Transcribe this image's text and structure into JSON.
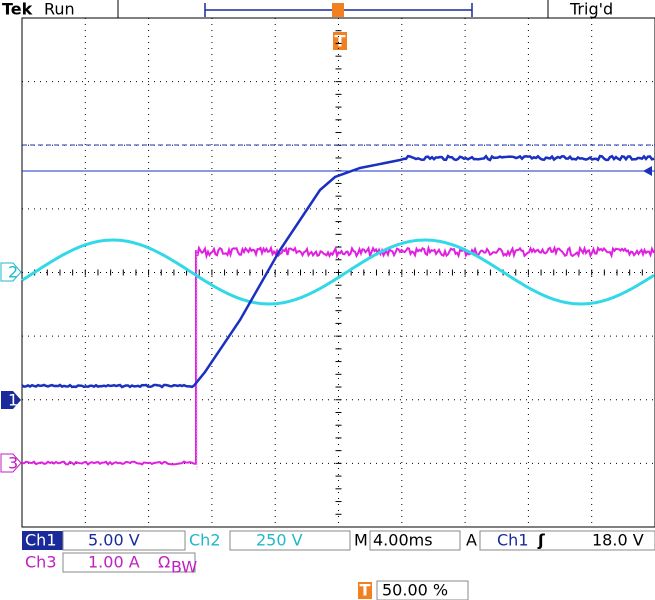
{
  "header": {
    "brand": "Tek",
    "state": "Run",
    "trigger_status": "Trig'd"
  },
  "markers": {
    "ch1": "1",
    "ch2": "2",
    "ch3": "3",
    "trigger": "T"
  },
  "status": {
    "ch1_label": "Ch1",
    "ch1_scale": "5.00 V",
    "ch2_label": "Ch2",
    "ch2_scale": "250 V",
    "time_label": "M",
    "time_scale": "4.00ms",
    "trigger_mode": "A",
    "trigger_source": "Ch1",
    "trigger_slope": "ʃ",
    "trigger_level": "18.0 V",
    "ch3_label": "Ch3",
    "ch3_scale": "1.00 A",
    "ch3_flags": "Ω",
    "ch3_bw": "BW",
    "trigger_position": "50.00 %"
  }
}
